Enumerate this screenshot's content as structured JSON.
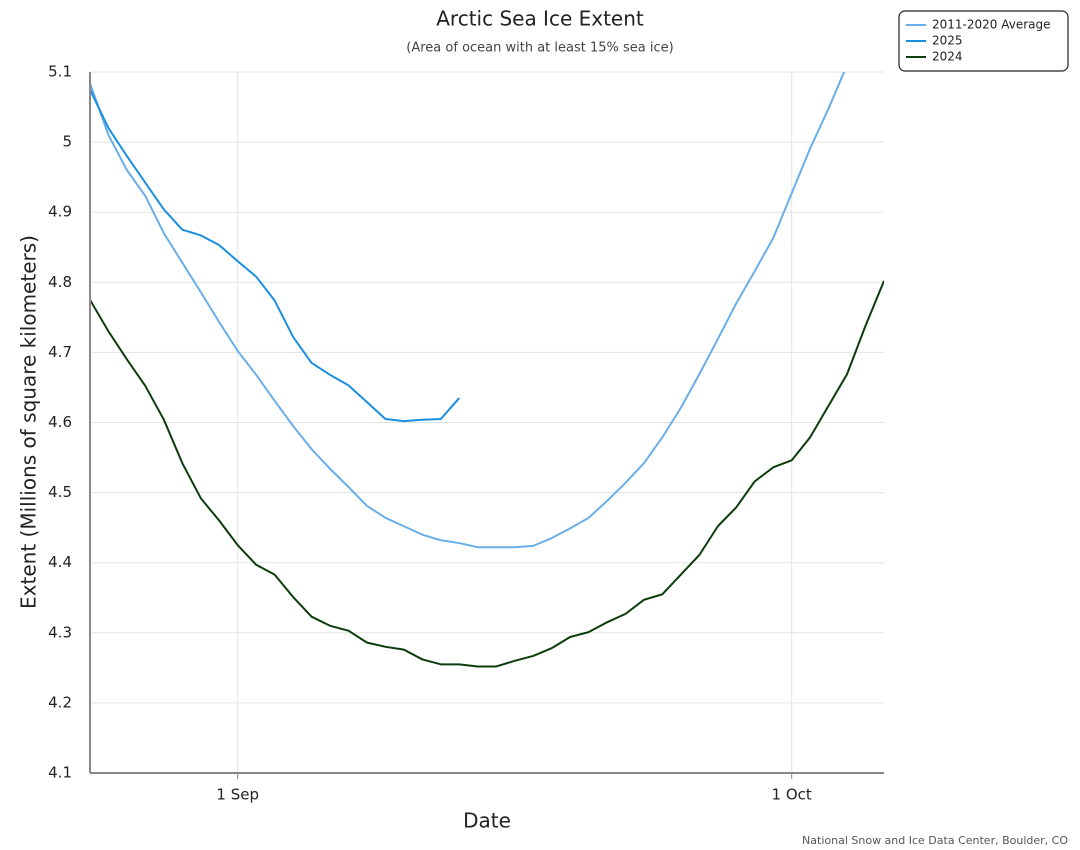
{
  "chart_data": {
    "type": "line",
    "title": "Arctic Sea Ice Extent",
    "subtitle": "(Area of ocean with at least 15% sea ice)",
    "x_label": "Date",
    "y_label": "Extent (Millions of square kilometers)",
    "source": "National Snow and Ice Data Center, Boulder, CO",
    "x": [
      "24 Aug",
      "25 Aug",
      "26 Aug",
      "27 Aug",
      "28 Aug",
      "29 Aug",
      "30 Aug",
      "31 Aug",
      "1 Sep",
      "2 Sep",
      "3 Sep",
      "4 Sep",
      "5 Sep",
      "6 Sep",
      "7 Sep",
      "8 Sep",
      "9 Sep",
      "10 Sep",
      "11 Sep",
      "12 Sep",
      "13 Sep",
      "14 Sep",
      "15 Sep",
      "16 Sep",
      "17 Sep",
      "18 Sep",
      "19 Sep",
      "20 Sep",
      "21 Sep",
      "22 Sep",
      "23 Sep",
      "24 Sep",
      "25 Sep",
      "26 Sep",
      "27 Sep",
      "28 Sep",
      "29 Sep",
      "30 Sep",
      "1 Oct",
      "2 Oct",
      "3 Oct",
      "4 Oct",
      "5 Oct",
      "6 Oct"
    ],
    "series": [
      {
        "name": "2011-2020 Average",
        "color": "#6aaee8",
        "values": [
          5.084,
          5.01,
          4.96,
          4.923,
          4.87,
          4.828,
          4.786,
          4.743,
          4.702,
          4.668,
          4.631,
          4.595,
          4.562,
          4.534,
          4.508,
          4.481,
          4.464,
          4.452,
          4.44,
          4.432,
          4.428,
          4.422,
          4.422,
          4.422,
          4.424,
          4.435,
          4.449,
          4.464,
          4.488,
          4.514,
          4.542,
          4.579,
          4.621,
          4.669,
          4.719,
          4.77,
          4.816,
          4.863,
          4.927,
          4.991,
          5.048,
          5.11,
          null,
          null
        ]
      },
      {
        "name": "2025",
        "color": "#1a8fe0",
        "values": [
          5.075,
          5.02,
          4.98,
          4.942,
          4.904,
          4.875,
          4.867,
          4.853,
          4.83,
          4.808,
          4.774,
          4.722,
          4.685,
          4.668,
          4.653,
          4.629,
          4.605,
          4.602,
          4.604,
          4.605,
          4.635,
          null,
          null,
          null,
          null,
          null,
          null,
          null,
          null,
          null,
          null,
          null,
          null,
          null,
          null,
          null,
          null,
          null,
          null,
          null,
          null,
          null,
          null,
          null
        ]
      },
      {
        "name": "2024",
        "color": "#0b3d0b",
        "values": [
          4.775,
          4.73,
          4.69,
          4.652,
          4.604,
          4.542,
          4.492,
          4.46,
          4.425,
          4.397,
          4.383,
          4.351,
          4.323,
          4.31,
          4.303,
          4.286,
          4.28,
          4.276,
          4.262,
          4.255,
          4.255,
          4.252,
          4.252,
          4.26,
          4.267,
          4.278,
          4.294,
          4.301,
          4.315,
          4.327,
          4.347,
          4.355,
          4.383,
          4.411,
          4.452,
          4.479,
          4.516,
          4.536,
          4.546,
          4.579,
          4.624,
          4.669,
          4.738,
          4.802
        ]
      }
    ],
    "xlim": [
      "24 Aug",
      "6 Oct"
    ],
    "xticks": [
      "1 Sep",
      "1 Oct"
    ],
    "ylim": [
      4.1,
      5.1
    ],
    "yticks": [
      4.1,
      4.2,
      4.3,
      4.4,
      4.5,
      4.6,
      4.7,
      4.8,
      4.9,
      5,
      5.1
    ],
    "grid": true,
    "legend": "top-right"
  }
}
